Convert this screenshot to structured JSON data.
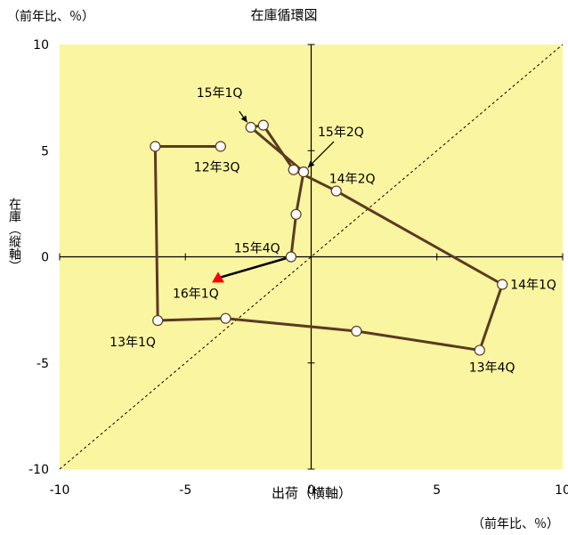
{
  "chart_data": {
    "type": "scatter",
    "title": "在庫循環図",
    "xlabel": "出荷（横軸）",
    "ylabel": "在庫（縦軸）",
    "x_unit": "（前年比、％）",
    "y_unit": "（前年比、％）",
    "xlim": [
      -10,
      10
    ],
    "ylim": [
      -10,
      10
    ],
    "x_ticks": [
      "-10",
      "-5",
      "0",
      "5",
      "10"
    ],
    "y_ticks": [
      "10",
      "5",
      "0",
      "-5",
      "-10"
    ],
    "colors": {
      "plot_bg": "#FAF5A0",
      "cycle_line": "#5C3A21",
      "latest_marker": "#FF0000",
      "latest_line": "#000000",
      "reference_line": "#000000"
    },
    "reference_line": "45-degree dashed line",
    "points": [
      {
        "label": "12年3Q",
        "x": -3.6,
        "y": 5.2
      },
      {
        "label": "",
        "x": -6.2,
        "y": 5.2
      },
      {
        "label": "13年1Q",
        "x": -6.1,
        "y": -3.0
      },
      {
        "label": "",
        "x": -3.4,
        "y": -2.9
      },
      {
        "label": "",
        "x": 1.8,
        "y": -3.5
      },
      {
        "label": "13年4Q",
        "x": 6.7,
        "y": -4.4
      },
      {
        "label": "14年1Q",
        "x": 7.6,
        "y": -1.3
      },
      {
        "label": "14年2Q",
        "x": 1.0,
        "y": 3.1
      },
      {
        "label": "",
        "x": -0.7,
        "y": 4.1
      },
      {
        "label": "",
        "x": -1.9,
        "y": 6.2
      },
      {
        "label": "15年1Q",
        "x": -2.4,
        "y": 6.1
      },
      {
        "label": "15年2Q",
        "x": -0.3,
        "y": 4.0
      },
      {
        "label": "",
        "x": -0.6,
        "y": 2.0
      },
      {
        "label": "15年4Q",
        "x": -0.8,
        "y": 0.0
      },
      {
        "label": "16年1Q",
        "x": -3.7,
        "y": -1.0
      }
    ]
  }
}
